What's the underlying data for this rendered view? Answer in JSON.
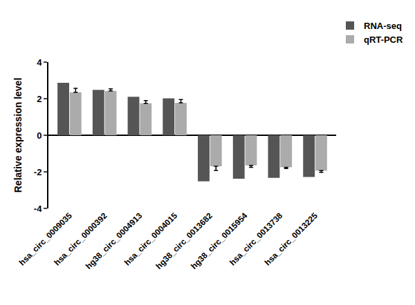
{
  "chart_data": {
    "type": "bar",
    "y_label": "Relative expression level",
    "categories": [
      "hsa_circ_0009035",
      "hsa_circ_0000392",
      "hg38_circ_0004913",
      "hsa_circ_0004015",
      "hg38_circ_0013682",
      "hg38_circ_0015954",
      "hsa_circ_0013738",
      "hsa_circ_0013225"
    ],
    "series": [
      {
        "name": "RNA-seq",
        "color": "#555555",
        "values": [
          2.87,
          2.48,
          2.1,
          2.02,
          -2.52,
          -2.38,
          -2.33,
          -2.28
        ]
      },
      {
        "name": "qRT-PCR",
        "color": "#ababab",
        "values": [
          2.35,
          2.42,
          1.75,
          1.77,
          -1.7,
          -1.65,
          -1.75,
          -1.93
        ],
        "errors": [
          0.22,
          0.12,
          0.15,
          0.18,
          0.22,
          0.1,
          0.07,
          0.1
        ]
      }
    ],
    "ylim": [
      -4,
      4
    ],
    "yticks": [
      -4,
      -2,
      0,
      2,
      4
    ],
    "grid": false,
    "legend": "upper right"
  }
}
